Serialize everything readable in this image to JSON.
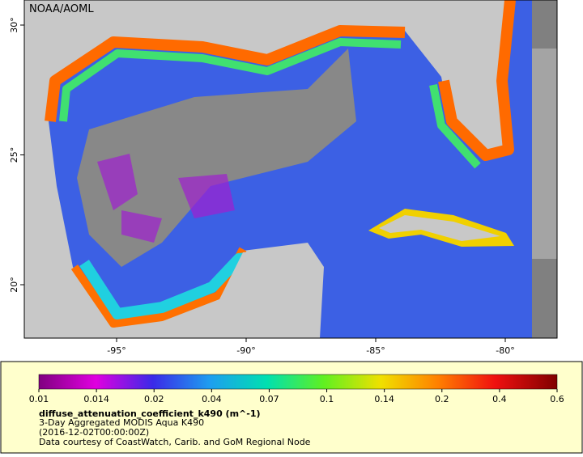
{
  "map": {
    "credit": "NOAA/AOML",
    "lon_labels": [
      "-95°",
      "-90°",
      "-85°",
      "-80°"
    ],
    "lat_labels": [
      "20°",
      "25°",
      "30°"
    ]
  },
  "legend": {
    "ticks": [
      0.01,
      0.014,
      0.02,
      0.04,
      0.07,
      0.1,
      0.14,
      0.2,
      0.4,
      0.6
    ],
    "title": "diffuse_attenuation_coefficient_k490 (m^-1)",
    "lines": [
      "3-Day Aggregated MODIS Aqua K490",
      "(2016-12-02T00:00:00Z)",
      "Data courtesy of CoastWatch, Carib. and GoM Regional Node"
    ]
  }
}
